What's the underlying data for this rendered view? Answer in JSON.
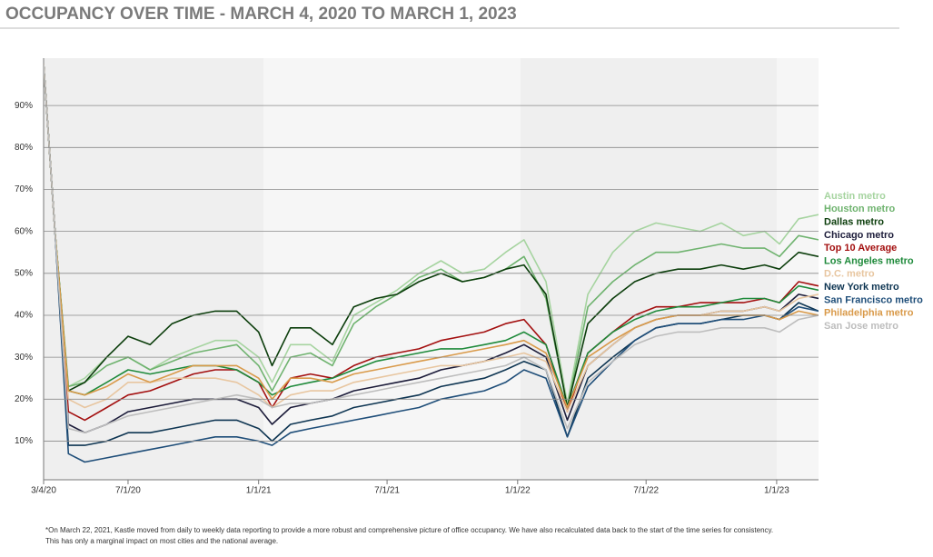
{
  "chart_data": {
    "type": "line",
    "title": "OCCUPANCY OVER TIME - MARCH 4, 2020 TO MARCH 1, 2023",
    "notes": [
      "*On March 22, 2021, Kastle moved from daily to weekly data reporting to provide a more robust and comprehensive picture of office occupancy. We have also recalculated data back to the start of the time series for consistency.",
      "This has only a marginal impact on most cities and the national average."
    ],
    "x": [
      "3/4/20",
      "3/20/20",
      "4/8/20",
      "5/1/20",
      "6/1/20",
      "7/1/20",
      "8/1/20",
      "9/1/20",
      "10/1/20",
      "11/1/20",
      "12/1/20",
      "1/1/21",
      "1/20/21",
      "2/15/21",
      "3/15/21",
      "4/15/21",
      "5/15/21",
      "6/15/21",
      "7/15/21",
      "8/15/21",
      "9/15/21",
      "10/15/21",
      "11/15/21",
      "12/15/21",
      "1/10/22",
      "2/10/22",
      "3/12/22",
      "4/10/22",
      "5/15/22",
      "6/15/22",
      "7/15/22",
      "8/15/22",
      "9/15/22",
      "10/15/22",
      "11/15/22",
      "12/15/22",
      "1/5/23",
      "2/1/23",
      "3/1/23"
    ],
    "xlim": [
      "3/4/20",
      "3/1/23"
    ],
    "xticks": [
      "3/4/20",
      "7/1/20",
      "1/1/21",
      "7/1/21",
      "1/1/22",
      "7/1/22",
      "1/1/23"
    ],
    "ylim": [
      1,
      100
    ],
    "yticks": [
      {
        "value": 10,
        "label": "10%"
      },
      {
        "value": 20,
        "label": "20%"
      },
      {
        "value": 30,
        "label": "30%"
      },
      {
        "value": 40,
        "label": "40%"
      },
      {
        "value": 50,
        "label": "50%"
      },
      {
        "value": 60,
        "label": "60%"
      },
      {
        "value": 70,
        "label": "70%"
      },
      {
        "value": 80,
        "label": "80%"
      },
      {
        "value": 90,
        "label": "90%"
      }
    ],
    "grid": true,
    "series": [
      {
        "name": "Austin metro",
        "color": "#a6d4a0",
        "values": [
          100,
          60,
          23,
          25,
          30,
          30,
          27,
          30,
          32,
          34,
          34,
          30,
          24,
          33,
          33,
          29,
          40,
          43,
          46,
          50,
          53,
          50,
          51,
          55,
          58,
          48,
          19,
          45,
          55,
          60,
          62,
          61,
          60,
          62,
          59,
          60,
          57,
          63,
          64
        ]
      },
      {
        "name": "Houston metro",
        "color": "#6fb36f",
        "values": [
          100,
          60,
          23,
          24,
          28,
          30,
          27,
          29,
          31,
          32,
          33,
          28,
          22,
          30,
          31,
          28,
          38,
          42,
          45,
          49,
          51,
          48,
          49,
          51,
          54,
          44,
          18,
          42,
          48,
          52,
          55,
          55,
          56,
          57,
          56,
          56,
          54,
          59,
          58
        ]
      },
      {
        "name": "Dallas metro",
        "color": "#0b3d0b",
        "values": [
          100,
          60,
          22,
          24,
          30,
          35,
          33,
          38,
          40,
          41,
          41,
          36,
          28,
          37,
          37,
          33,
          42,
          44,
          45,
          48,
          50,
          48,
          49,
          51,
          52,
          45,
          18,
          38,
          44,
          48,
          50,
          51,
          51,
          52,
          51,
          52,
          51,
          55,
          54
        ]
      },
      {
        "name": "Chicago metro",
        "color": "#1c1c3a",
        "values": [
          100,
          60,
          14,
          12,
          14,
          17,
          18,
          19,
          20,
          20,
          20,
          18,
          14,
          18,
          19,
          20,
          22,
          23,
          24,
          25,
          27,
          28,
          29,
          31,
          33,
          30,
          15,
          28,
          33,
          37,
          39,
          40,
          40,
          41,
          41,
          42,
          41,
          45,
          44
        ]
      },
      {
        "name": "Top 10 Average",
        "color": "#a30f0f",
        "values": [
          100,
          60,
          17,
          15,
          18,
          21,
          22,
          24,
          26,
          27,
          27,
          24,
          18,
          25,
          26,
          25,
          28,
          30,
          31,
          32,
          34,
          35,
          36,
          38,
          39,
          33,
          17,
          31,
          36,
          40,
          42,
          42,
          43,
          43,
          43,
          44,
          43,
          48,
          47
        ]
      },
      {
        "name": "Los Angeles metro",
        "color": "#1f8a3b",
        "values": [
          100,
          60,
          22,
          21,
          24,
          27,
          26,
          27,
          28,
          28,
          27,
          24,
          21,
          23,
          24,
          25,
          27,
          29,
          30,
          31,
          32,
          32,
          33,
          34,
          36,
          33,
          18,
          31,
          36,
          39,
          41,
          42,
          42,
          43,
          44,
          44,
          43,
          47,
          46
        ]
      },
      {
        "name": "D.C. metro",
        "color": "#e8c6a0",
        "values": [
          100,
          60,
          20,
          18,
          20,
          24,
          24,
          25,
          25,
          25,
          24,
          21,
          18,
          21,
          22,
          22,
          24,
          25,
          26,
          27,
          28,
          28,
          29,
          30,
          31,
          29,
          17,
          28,
          33,
          37,
          39,
          40,
          40,
          41,
          41,
          42,
          41,
          44,
          45
        ]
      },
      {
        "name": "New York metro",
        "color": "#0e3552",
        "values": [
          100,
          60,
          9,
          9,
          10,
          12,
          12,
          13,
          14,
          15,
          15,
          13,
          10,
          14,
          15,
          16,
          18,
          19,
          20,
          21,
          23,
          24,
          25,
          27,
          29,
          27,
          11,
          25,
          30,
          34,
          37,
          38,
          38,
          39,
          40,
          40,
          39,
          43,
          41
        ]
      },
      {
        "name": "San Francisco metro",
        "color": "#1f4e79",
        "values": [
          100,
          60,
          7,
          5,
          6,
          7,
          8,
          9,
          10,
          11,
          11,
          10,
          9,
          12,
          13,
          14,
          15,
          16,
          17,
          18,
          20,
          21,
          22,
          24,
          27,
          25,
          11,
          23,
          29,
          34,
          37,
          38,
          38,
          39,
          39,
          40,
          39,
          42,
          41
        ]
      },
      {
        "name": "Philadelphia metro",
        "color": "#d99a4a",
        "values": [
          100,
          60,
          22,
          21,
          23,
          26,
          24,
          26,
          28,
          28,
          28,
          25,
          20,
          25,
          25,
          24,
          26,
          27,
          28,
          29,
          30,
          31,
          32,
          33,
          34,
          31,
          18,
          30,
          34,
          37,
          39,
          40,
          40,
          40,
          40,
          40,
          39,
          41,
          40
        ]
      },
      {
        "name": "San Jose metro",
        "color": "#bdbdbd",
        "values": [
          100,
          60,
          13,
          12,
          14,
          16,
          17,
          18,
          19,
          20,
          21,
          20,
          18,
          19,
          19,
          20,
          21,
          22,
          23,
          24,
          25,
          26,
          27,
          28,
          30,
          27,
          13,
          24,
          29,
          33,
          35,
          36,
          36,
          37,
          37,
          37,
          36,
          39,
          40
        ]
      }
    ]
  }
}
